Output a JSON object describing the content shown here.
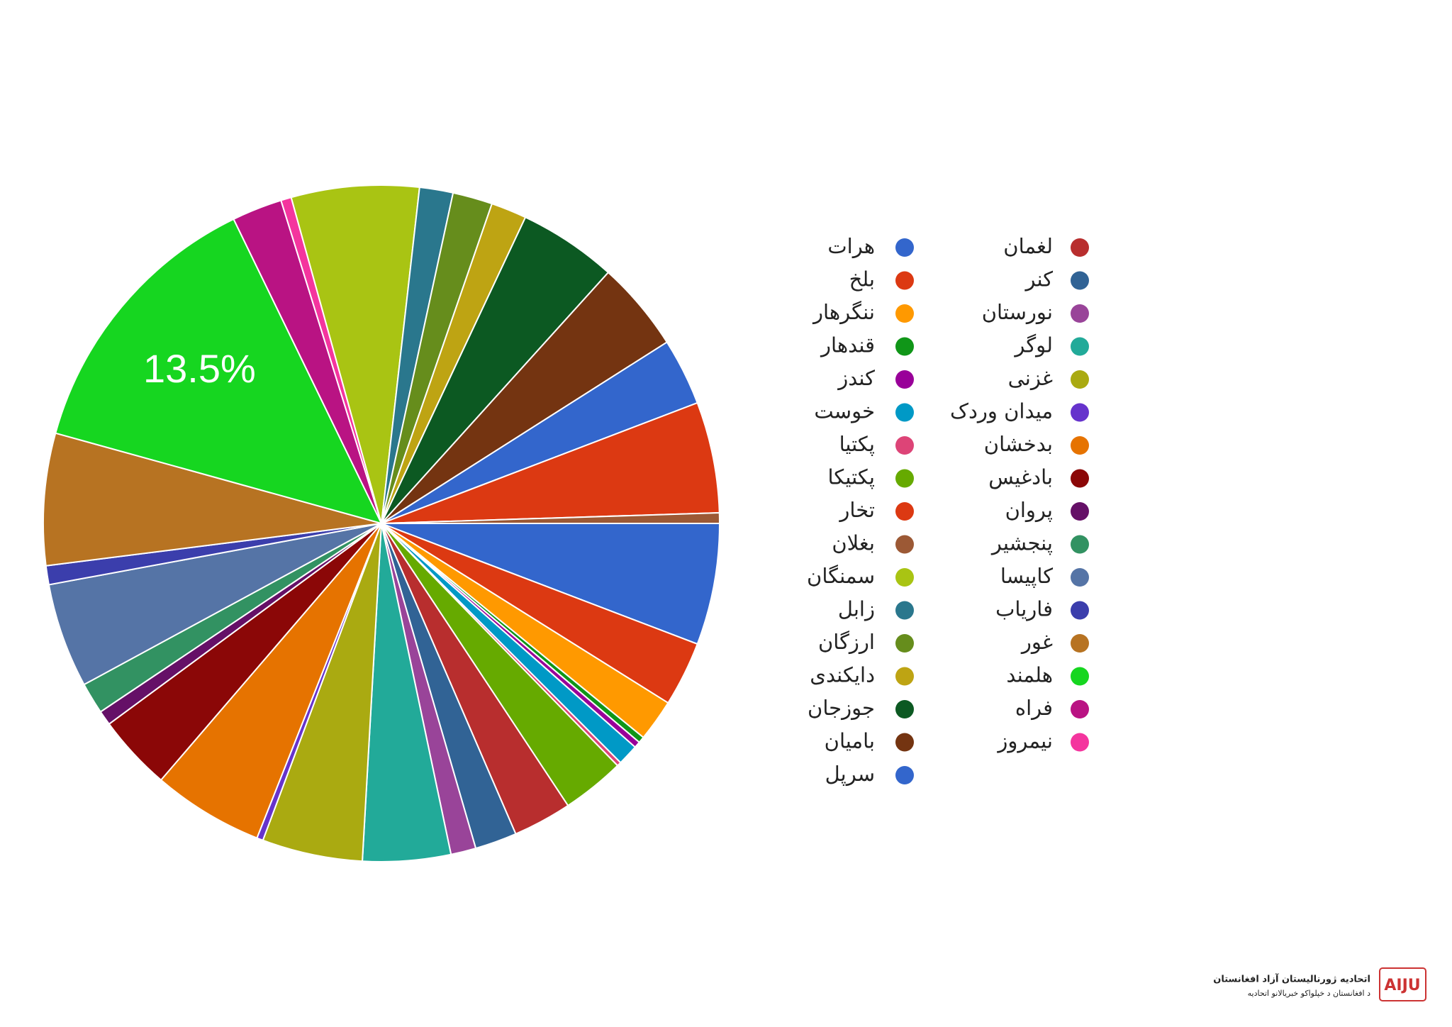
{
  "chart_data": {
    "type": "pie",
    "categories": [
      "هرات",
      "بلخ",
      "ننگرهار",
      "قندهار",
      "کندز",
      "خوست",
      "پکتیا",
      "پکتیکا",
      "لغمان",
      "کنر",
      "نورستان",
      "لوگر",
      "غزنی",
      "میدان وردک",
      "بدخشان",
      "بادغیس",
      "پروان",
      "پنجشیر",
      "کاپیسا",
      "فاریاب",
      "غور",
      "هلمند",
      "فراه",
      "نیمروز",
      "سمنگان",
      "زابل",
      "ارزگان",
      "دایکندی",
      "جوزجان",
      "بامیان",
      "سرپل",
      "تخار",
      "بغلان"
    ],
    "values": [
      5.8,
      3.1,
      2,
      0.3,
      0.3,
      1,
      0.2,
      3,
      2.8,
      2,
      1.2,
      4.2,
      4.8,
      0.3,
      5.3,
      3.6,
      0.7,
      1.5,
      5,
      0.9,
      6.3,
      13.5,
      2.4,
      0.5,
      6.1,
      1.6,
      1.9,
      1.7,
      4.7,
      4.3,
      3.2,
      5.3,
      0.5
    ],
    "value_labels": [
      null,
      null,
      null,
      null,
      null,
      null,
      null,
      null,
      null,
      null,
      null,
      null,
      null,
      null,
      null,
      null,
      null,
      null,
      null,
      null,
      null,
      "13.5%",
      null,
      null,
      null,
      null,
      null,
      null,
      null,
      null,
      null,
      null,
      null
    ],
    "colors": [
      "#3366cc",
      "#dc3912",
      "#ff9900",
      "#109618",
      "#990099",
      "#0099c6",
      "#dd4477",
      "#66aa00",
      "#b82e2e",
      "#316395",
      "#994499",
      "#22aa99",
      "#aaaa11",
      "#6633cc",
      "#e67300",
      "#8b0707",
      "#651067",
      "#329262",
      "#5574a6",
      "#3b3eac",
      "#b77322",
      "#16d620",
      "#b91383",
      "#f4359e",
      "#a9c413",
      "#2a778d",
      "#668d1c",
      "#bea413",
      "#0c5922",
      "#743411",
      "#3366cc",
      "#dc3912",
      "#9c5935"
    ]
  },
  "watermark": {
    "logo": "AIJU",
    "line1": "اتحادیه ژورنالیستان آزاد افغانستان",
    "line2": "د افغانستان د خپلواکو خبریالانو اتحادیه"
  }
}
